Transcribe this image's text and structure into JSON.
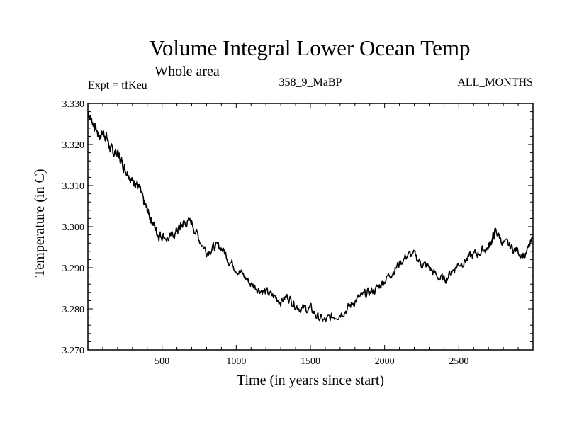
{
  "chart_data": {
    "type": "line",
    "title": "Volume Integral Lower Ocean Temp",
    "subtitle": "Whole area",
    "left_string": "Expt = tfKeu",
    "center_string": "358_9_MaBP",
    "right_string": "ALL_MONTHS",
    "xlabel": "Time (in years since start)",
    "ylabel": "Temperature (in C)",
    "xlim": [
      0,
      3000
    ],
    "ylim": [
      3.27,
      3.33
    ],
    "x_ticks": [
      500,
      1000,
      1500,
      2000,
      2500
    ],
    "x_tick_labels": [
      "500",
      "1000",
      "1500",
      "2000",
      "2500"
    ],
    "y_ticks": [
      3.27,
      3.28,
      3.29,
      3.3,
      3.31,
      3.32,
      3.33
    ],
    "y_tick_labels": [
      "3.270",
      "3.280",
      "3.290",
      "3.300",
      "3.310",
      "3.320",
      "3.330"
    ],
    "grid": false,
    "line_color": "#000000",
    "series": [
      {
        "x": [
          0,
          25,
          50,
          75,
          100,
          125,
          150,
          175,
          200,
          225,
          250,
          275,
          300,
          325,
          350,
          375,
          400,
          425,
          450,
          475,
          500,
          550,
          600,
          625,
          650,
          700,
          750,
          800,
          850,
          900,
          950,
          1000,
          1050,
          1100,
          1150,
          1200,
          1250,
          1300,
          1350,
          1400,
          1450,
          1500,
          1550,
          1600,
          1650,
          1700,
          1750,
          1800,
          1850,
          1900,
          1950,
          2000,
          2050,
          2100,
          2150,
          2200,
          2250,
          2300,
          2350,
          2400,
          2450,
          2500,
          2550,
          2600,
          2650,
          2700,
          2725,
          2750,
          2800,
          2850,
          2900,
          2950,
          3000
        ],
        "values": [
          3.328,
          3.326,
          3.324,
          3.322,
          3.323,
          3.322,
          3.319,
          3.318,
          3.318,
          3.316,
          3.314,
          3.313,
          3.311,
          3.311,
          3.309,
          3.306,
          3.304,
          3.302,
          3.3,
          3.298,
          3.298,
          3.297,
          3.299,
          3.3,
          3.301,
          3.301,
          3.297,
          3.294,
          3.295,
          3.295,
          3.292,
          3.29,
          3.288,
          3.286,
          3.285,
          3.284,
          3.283,
          3.282,
          3.283,
          3.281,
          3.28,
          3.28,
          3.278,
          3.277,
          3.278,
          3.279,
          3.28,
          3.282,
          3.283,
          3.284,
          3.285,
          3.287,
          3.289,
          3.291,
          3.293,
          3.293,
          3.291,
          3.29,
          3.288,
          3.287,
          3.289,
          3.291,
          3.292,
          3.293,
          3.294,
          3.295,
          3.297,
          3.299,
          3.296,
          3.295,
          3.294,
          3.293,
          3.297
        ]
      }
    ]
  }
}
